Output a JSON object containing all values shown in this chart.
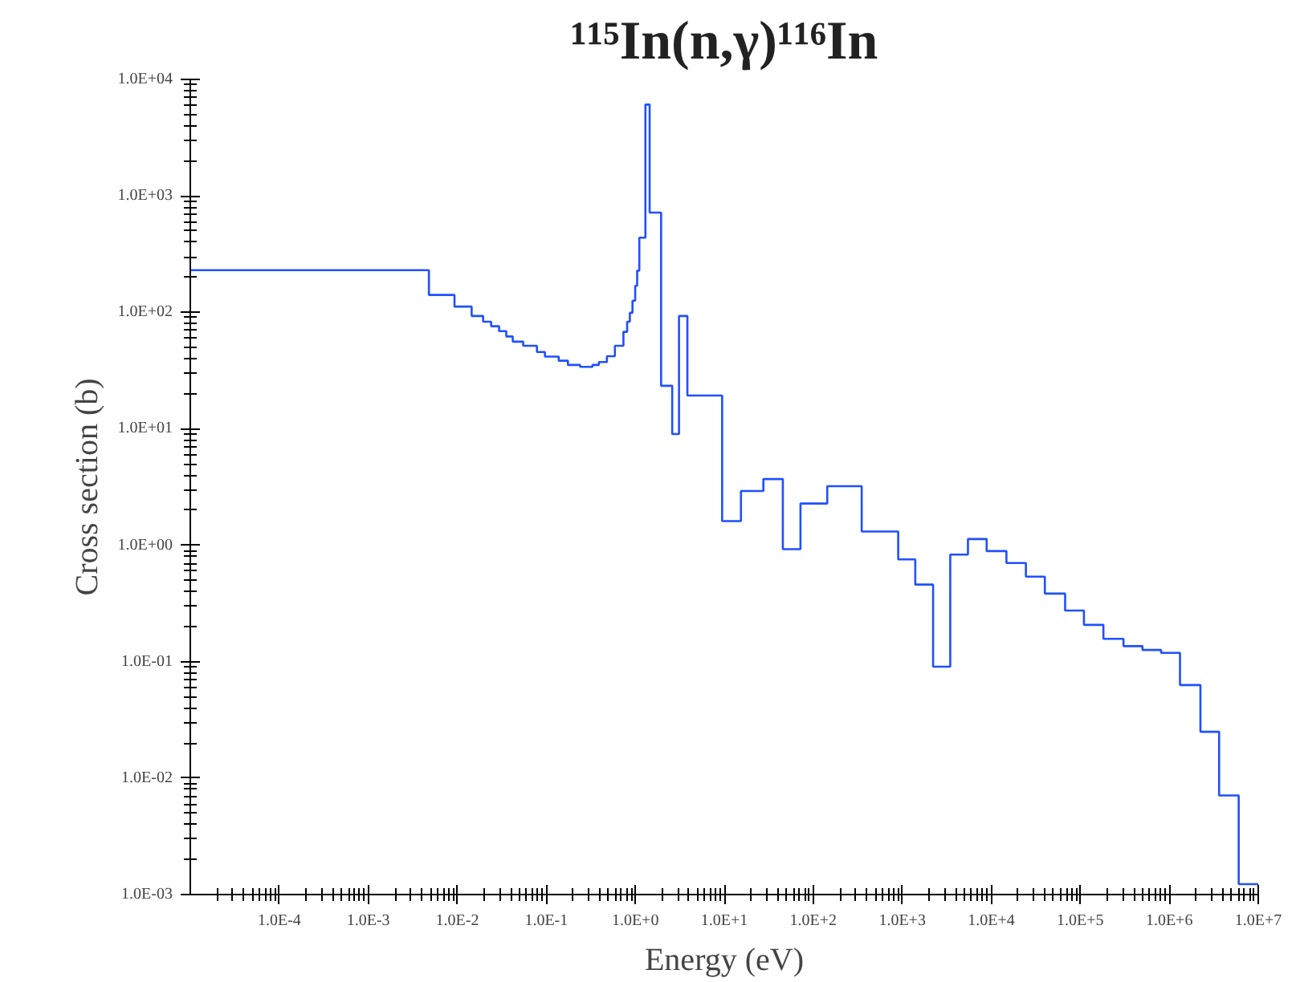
{
  "chart_data": {
    "type": "step",
    "title": "¹¹⁵In(n,γ)¹¹⁶In",
    "xlabel": "Energy (eV)",
    "ylabel": "Cross section (b)",
    "log": "xy",
    "grid": false,
    "xlim": [
      1e-05,
      10000000.0
    ],
    "ylim": [
      0.001,
      10000.0
    ],
    "xticks": [
      {
        "value": 0.0001,
        "label": "1.0E-4"
      },
      {
        "value": 0.001,
        "label": "1.0E-3"
      },
      {
        "value": 0.01,
        "label": "1.0E-2"
      },
      {
        "value": 0.1,
        "label": "1.0E-1"
      },
      {
        "value": 1,
        "label": "1.0E+0"
      },
      {
        "value": 10,
        "label": "1.0E+1"
      },
      {
        "value": 100,
        "label": "1.0E+2"
      },
      {
        "value": 1000,
        "label": "1.0E+3"
      },
      {
        "value": 10000,
        "label": "1.0E+4"
      },
      {
        "value": 100000,
        "label": "1.0E+5"
      },
      {
        "value": 1000000,
        "label": "1.0E+6"
      },
      {
        "value": 10000000,
        "label": "1.0E+7"
      }
    ],
    "yticks": [
      {
        "value": 0.001,
        "label": "1.0E-03"
      },
      {
        "value": 0.01,
        "label": "1.0E-02"
      },
      {
        "value": 0.1,
        "label": "1.0E-01"
      },
      {
        "value": 1,
        "label": "1.0E+00"
      },
      {
        "value": 10,
        "label": "1.0E+01"
      },
      {
        "value": 100,
        "label": "1.0E+02"
      },
      {
        "value": 1000,
        "label": "1.0E+03"
      },
      {
        "value": 10000,
        "label": "1.0E+04"
      }
    ],
    "series": [
      {
        "color": "#2050ff",
        "x": [
          1e-05,
          0.0048,
          0.0093,
          0.0145,
          0.0195,
          0.024,
          0.0295,
          0.0355,
          0.042,
          0.055,
          0.0785,
          0.0966,
          0.138,
          0.175,
          0.24,
          0.33,
          0.39,
          0.48,
          0.59,
          0.736,
          0.81,
          0.869,
          0.93,
          0.998,
          1.05,
          1.11,
          1.3,
          1.45,
          1.95,
          2.6,
          3.1,
          3.85,
          9.46,
          15.4,
          27.5,
          45.5,
          71.8,
          143.5,
          350,
          900,
          1400,
          2220,
          3460,
          5470,
          8870,
          14800,
          24500,
          40000,
          67600,
          110000,
          182000,
          306000,
          500000,
          810000,
          1320000,
          2240000,
          3630000,
          6030000,
          10000000
        ],
        "values": [
          230,
          141,
          112,
          93,
          83,
          76,
          69,
          62,
          56,
          51.6,
          45.6,
          41.6,
          38.4,
          35.3,
          34,
          35.3,
          37.4,
          42,
          51.6,
          68,
          83,
          99,
          126,
          169,
          228,
          437,
          6080,
          718,
          23.4,
          9.0,
          93,
          19.3,
          1.61,
          2.92,
          3.7,
          0.925,
          2.28,
          3.21,
          1.31,
          0.755,
          0.459,
          0.0906,
          0.83,
          1.13,
          0.89,
          0.703,
          0.537,
          0.384,
          0.275,
          0.207,
          0.157,
          0.136,
          0.126,
          0.119,
          0.063,
          0.025,
          0.0071,
          0.00123,
          0.00123
        ]
      }
    ]
  }
}
